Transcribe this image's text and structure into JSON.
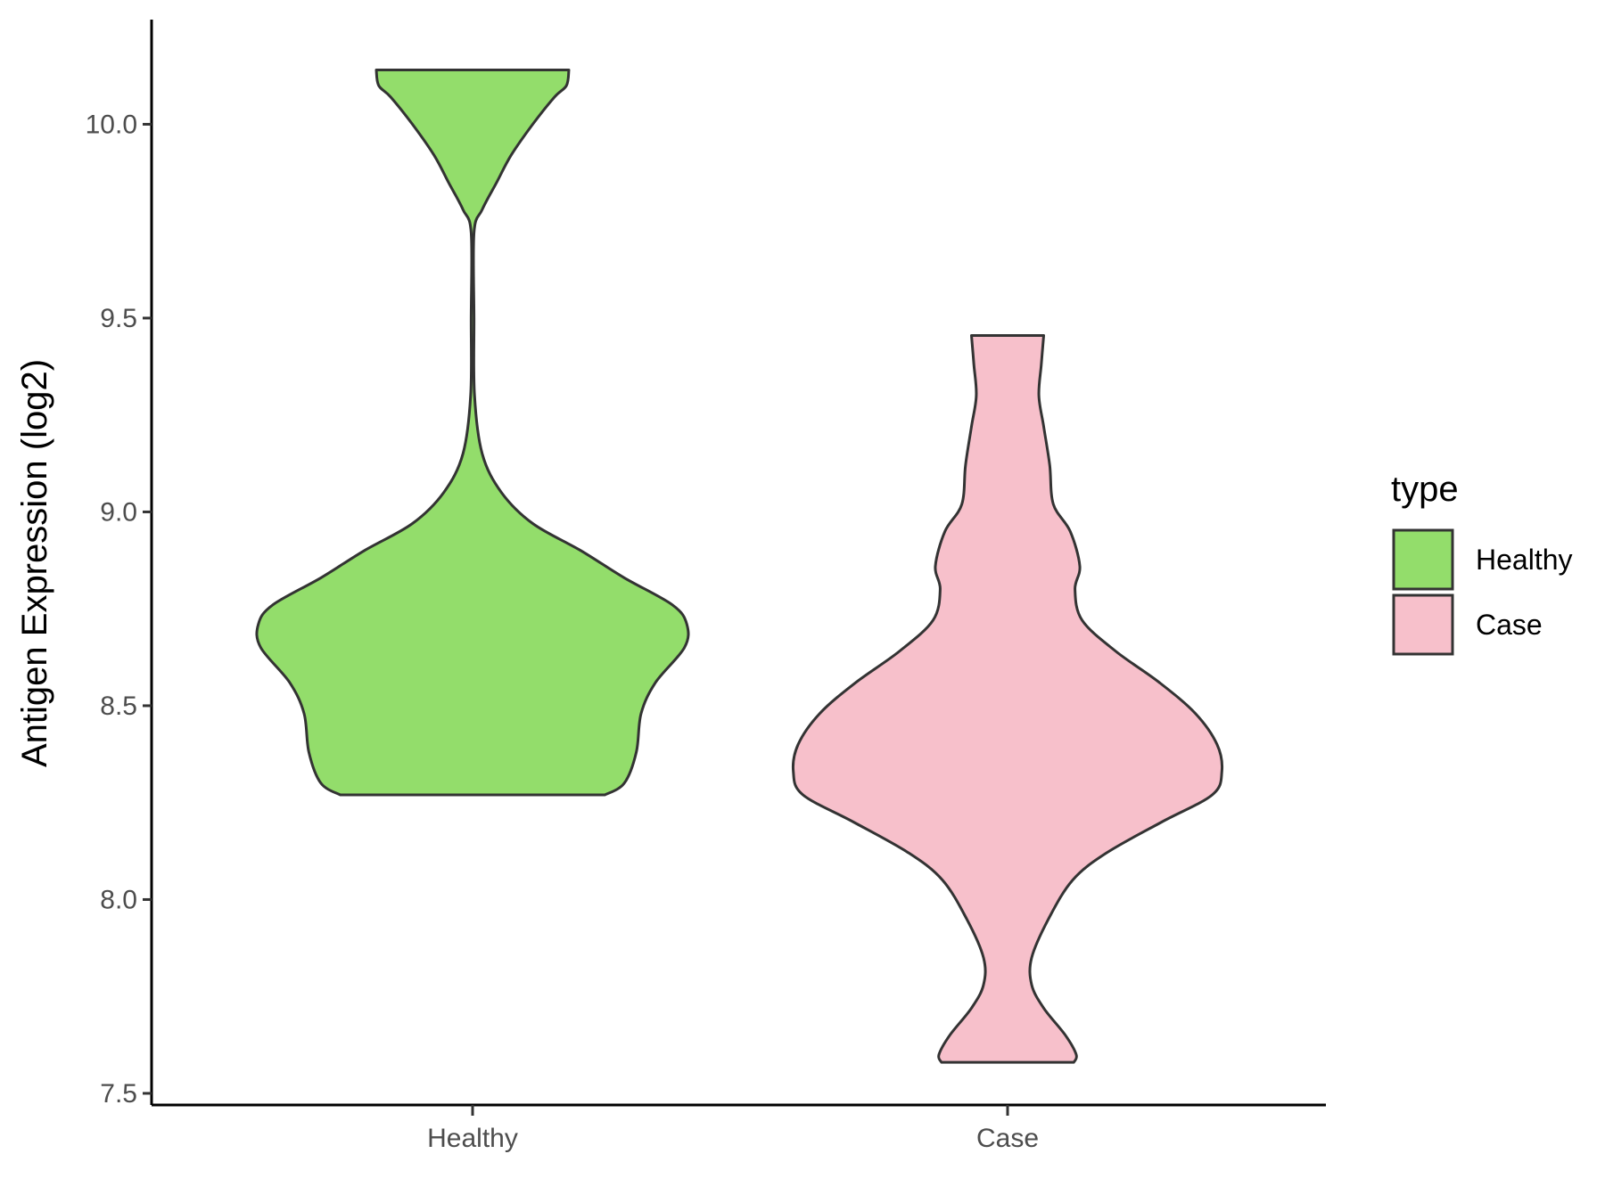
{
  "chart_data": {
    "type": "violin",
    "ylabel": "Antigen Expression (log2)",
    "xlabel": "",
    "categories": [
      "Healthy",
      "Case"
    ],
    "ylim": [
      7.47,
      10.27
    ],
    "yticks": [
      7.5,
      8.0,
      8.5,
      9.0,
      9.5,
      10.0
    ],
    "ytick_labels": [
      "7.5",
      "8.0",
      "8.5",
      "9.0",
      "9.5",
      "10.0"
    ],
    "grid": false,
    "legend": {
      "title": "type",
      "placement": "right",
      "entries": [
        {
          "label": "Healthy",
          "color": "#93DD6B"
        },
        {
          "label": "Case",
          "color": "#F7C0CB"
        }
      ]
    },
    "series": [
      {
        "name": "Healthy",
        "color": "#93DD6B",
        "y_min": 8.27,
        "y_max": 10.14,
        "profile": [
          [
            8.27,
            0.55
          ],
          [
            8.3,
            0.63
          ],
          [
            8.38,
            0.68
          ],
          [
            8.48,
            0.7
          ],
          [
            8.56,
            0.76
          ],
          [
            8.65,
            0.88
          ],
          [
            8.71,
            0.89
          ],
          [
            8.76,
            0.83
          ],
          [
            8.83,
            0.63
          ],
          [
            8.9,
            0.45
          ],
          [
            8.97,
            0.25
          ],
          [
            9.05,
            0.12
          ],
          [
            9.15,
            0.04
          ],
          [
            9.3,
            0.008
          ],
          [
            9.5,
            0.006
          ],
          [
            9.72,
            0.006
          ],
          [
            9.78,
            0.04
          ],
          [
            9.85,
            0.1
          ],
          [
            9.92,
            0.16
          ],
          [
            10.0,
            0.25
          ],
          [
            10.07,
            0.34
          ],
          [
            10.1,
            0.39
          ],
          [
            10.14,
            0.4
          ]
        ]
      },
      {
        "name": "Case",
        "color": "#F7C0CB",
        "y_min": 7.58,
        "y_max": 9.455,
        "profile": [
          [
            7.58,
            0.275
          ],
          [
            7.6,
            0.285
          ],
          [
            7.65,
            0.24
          ],
          [
            7.72,
            0.15
          ],
          [
            7.78,
            0.1
          ],
          [
            7.85,
            0.1
          ],
          [
            7.95,
            0.17
          ],
          [
            8.05,
            0.27
          ],
          [
            8.12,
            0.41
          ],
          [
            8.2,
            0.64
          ],
          [
            8.27,
            0.85
          ],
          [
            8.33,
            0.89
          ],
          [
            8.4,
            0.87
          ],
          [
            8.48,
            0.78
          ],
          [
            8.56,
            0.63
          ],
          [
            8.64,
            0.45
          ],
          [
            8.72,
            0.31
          ],
          [
            8.8,
            0.28
          ],
          [
            8.86,
            0.3
          ],
          [
            8.95,
            0.26
          ],
          [
            9.02,
            0.19
          ],
          [
            9.12,
            0.175
          ],
          [
            9.22,
            0.15
          ],
          [
            9.3,
            0.13
          ],
          [
            9.38,
            0.14
          ],
          [
            9.455,
            0.15
          ]
        ]
      }
    ]
  }
}
